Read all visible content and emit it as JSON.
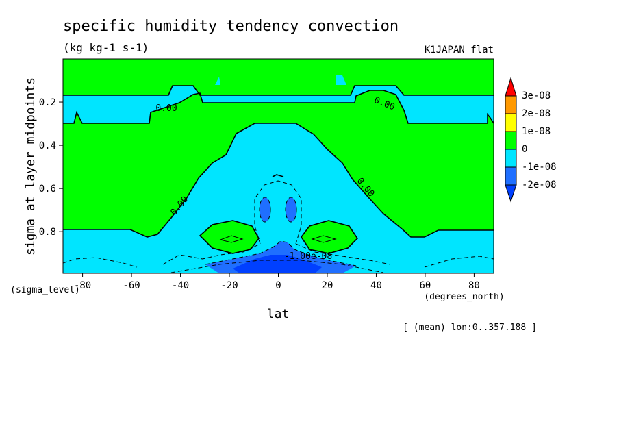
{
  "title": "specific humidity tendency convection",
  "units": "(kg kg-1 s-1)",
  "run_label": "K1JAPAN_flat",
  "footer": "[ (mean) lon:0..357.188 ]",
  "colors": {
    "c_m2e8": "#1f6fff",
    "c_m1e8": "#00e5ff",
    "c_0": "#00ff00",
    "c_1e8": "#ffff00",
    "c_2e8": "#ff9900",
    "c_3e8": "#ff0000",
    "deep_blue": "#0040ff"
  },
  "chart_data": {
    "type": "heatmap",
    "xlabel": "lat",
    "xunit": "(degrees_north)",
    "ylabel": "sigma at layer midpoints",
    "yunit": "(sigma_level)",
    "xlim": [
      -88,
      88
    ],
    "ylim": [
      0.993,
      0.0
    ],
    "xticks": [
      -80,
      -60,
      -40,
      -20,
      0,
      20,
      40,
      60,
      80
    ],
    "xtick_labels": [
      "-80",
      "-60",
      "-40",
      "-20",
      "0",
      "20",
      "40",
      "60",
      "80"
    ],
    "yticks": [
      0.2,
      0.4,
      0.6,
      0.8
    ],
    "ytick_labels": [
      "0.2",
      "0.4",
      "0.6",
      "0.8"
    ],
    "colorbar": {
      "levels": [
        "3e-08",
        "2e-08",
        "1e-08",
        "0",
        "-1e-08",
        "-2e-08"
      ]
    },
    "contour_labels": [
      {
        "text": "0.00",
        "lat": -46,
        "sigma": 0.24
      },
      {
        "text": "0.00",
        "lat": 43,
        "sigma": 0.24
      },
      {
        "text": "0.00",
        "lat": -40,
        "sigma": 0.73
      },
      {
        "text": "0.00",
        "lat": 36,
        "sigma": 0.66
      },
      {
        "text": "-1.00e-08",
        "lat": 10,
        "sigma": 0.94
      }
    ]
  }
}
